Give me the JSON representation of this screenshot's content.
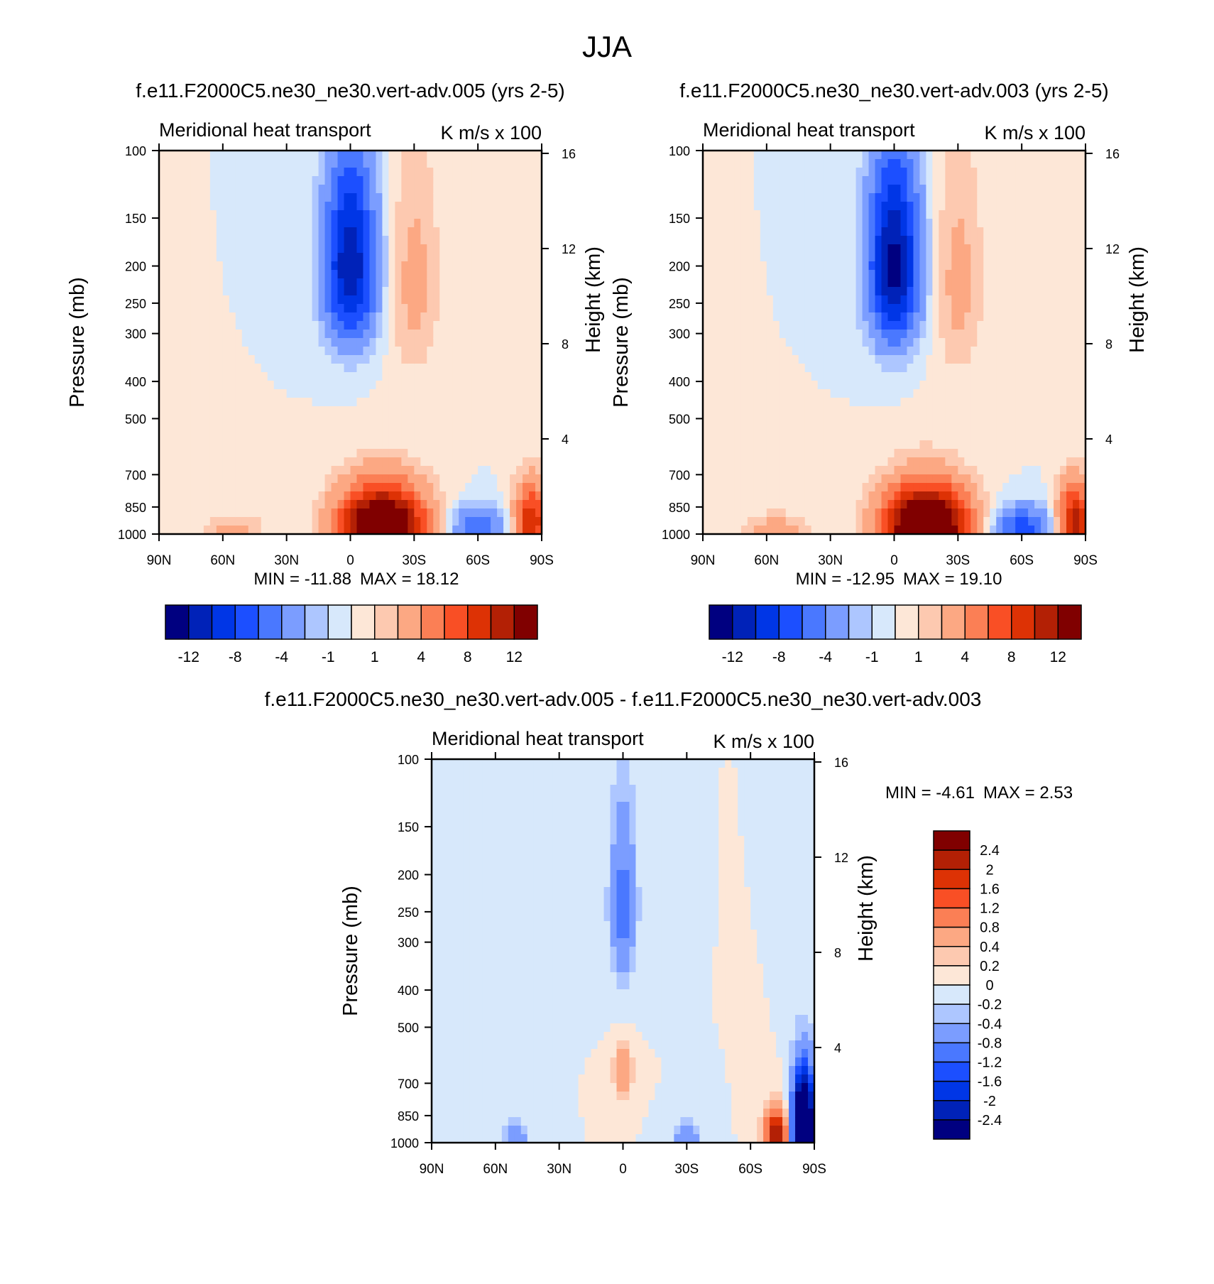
{
  "figure": {
    "title": "JJA"
  },
  "palettes": {
    "full": [
      "#000080",
      "#0022b8",
      "#0036e6",
      "#1c4fff",
      "#4a78ff",
      "#7b9dff",
      "#adc6ff",
      "#d7e8fb",
      "#fde7d7",
      "#fdc9b0",
      "#fca883",
      "#fb7f55",
      "#f94f25",
      "#dd3205",
      "#b32005",
      "#800000"
    ],
    "diff": [
      "#000080",
      "#0022b8",
      "#0036e6",
      "#1c4fff",
      "#4a78ff",
      "#7b9dff",
      "#adc6ff",
      "#d7e8fb",
      "#fde7d7",
      "#fdc9b0",
      "#fca883",
      "#fb7f55",
      "#f94f25",
      "#dd3205",
      "#b32005",
      "#800000"
    ]
  },
  "chart_data": [
    {
      "type": "heatmap",
      "title": "f.e11.F2000C5.ne30_ne30.vert-adv.005 (yrs 2-5)",
      "left_string": "Meridional heat transport",
      "right_string": "K m/s x 100",
      "ylabel": "Pressure (mb)",
      "y2label": "Height (km)",
      "x_ticks": [
        "90N",
        "60N",
        "30N",
        "0",
        "30S",
        "60S",
        "90S"
      ],
      "y_ticks": [
        "100",
        "150",
        "200",
        "250",
        "300",
        "400",
        "500",
        "700",
        "850",
        "1000"
      ],
      "y2_ticks": [
        "16",
        "12",
        "8",
        "4"
      ],
      "xlim": [
        90,
        -90
      ],
      "ylim": [
        1000,
        100
      ],
      "min_label": "MIN = -11.88",
      "max_label": "MAX =  18.12",
      "min": -11.88,
      "max": 18.12,
      "levels": [
        -14,
        -12,
        -10,
        -8,
        -6,
        -4,
        -2,
        -1,
        0,
        1,
        2,
        4,
        6,
        8,
        10,
        12,
        14
      ],
      "colorbar_labels": [
        "-12",
        "-8",
        "-4",
        "-1",
        "1",
        "4",
        "8",
        "12"
      ],
      "features": [
        {
          "lat": 0,
          "p": 200,
          "value": -11.88,
          "dlat": 12,
          "dp": 110
        },
        {
          "lat": -15,
          "p": 960,
          "value": 18.12,
          "dlat": 20,
          "dp": 220
        },
        {
          "lat": -30,
          "p": 220,
          "value": 2.5,
          "dlat": 12,
          "dp": 150
        },
        {
          "lat": -60,
          "p": 960,
          "value": -5.5,
          "dlat": 14,
          "dp": 120
        },
        {
          "lat": -85,
          "p": 930,
          "value": 10,
          "dlat": 8,
          "dp": 200
        },
        {
          "lat": 55,
          "p": 980,
          "value": 2.5,
          "dlat": 15,
          "dp": 100
        }
      ]
    },
    {
      "type": "heatmap",
      "title": "f.e11.F2000C5.ne30_ne30.vert-adv.003 (yrs 2-5)",
      "left_string": "Meridional heat transport",
      "right_string": "K m/s x 100",
      "ylabel": "Pressure (mb)",
      "y2label": "Height (km)",
      "x_ticks": [
        "90N",
        "60N",
        "30N",
        "0",
        "30S",
        "60S",
        "90S"
      ],
      "y_ticks": [
        "100",
        "150",
        "200",
        "250",
        "300",
        "400",
        "500",
        "700",
        "850",
        "1000"
      ],
      "y2_ticks": [
        "16",
        "12",
        "8",
        "4"
      ],
      "xlim": [
        90,
        -90
      ],
      "ylim": [
        1000,
        100
      ],
      "min_label": "MIN = -12.95",
      "max_label": "MAX =  19.10",
      "min": -12.95,
      "max": 19.1,
      "levels": [
        -14,
        -12,
        -10,
        -8,
        -6,
        -4,
        -2,
        -1,
        0,
        1,
        2,
        4,
        6,
        8,
        10,
        12,
        14
      ],
      "colorbar_labels": [
        "-12",
        "-8",
        "-4",
        "-1",
        "1",
        "4",
        "8",
        "12"
      ],
      "features": [
        {
          "lat": 0,
          "p": 200,
          "value": -12.95,
          "dlat": 12,
          "dp": 110
        },
        {
          "lat": -15,
          "p": 960,
          "value": 19.1,
          "dlat": 20,
          "dp": 220
        },
        {
          "lat": -30,
          "p": 220,
          "value": 2.5,
          "dlat": 12,
          "dp": 150
        },
        {
          "lat": -60,
          "p": 960,
          "value": -7,
          "dlat": 14,
          "dp": 120
        },
        {
          "lat": -85,
          "p": 930,
          "value": 11,
          "dlat": 8,
          "dp": 200
        },
        {
          "lat": 55,
          "p": 980,
          "value": 3,
          "dlat": 15,
          "dp": 100
        }
      ]
    },
    {
      "type": "heatmap",
      "title": "f.e11.F2000C5.ne30_ne30.vert-adv.005 - f.e11.F2000C5.ne30_ne30.vert-adv.003",
      "left_string": "Meridional heat transport",
      "right_string": "K m/s x 100",
      "ylabel": "Pressure (mb)",
      "y2label": "Height (km)",
      "x_ticks": [
        "90N",
        "60N",
        "30N",
        "0",
        "30S",
        "60S",
        "90S"
      ],
      "y_ticks": [
        "100",
        "150",
        "200",
        "250",
        "300",
        "400",
        "500",
        "700",
        "850",
        "1000"
      ],
      "y2_ticks": [
        "16",
        "12",
        "8",
        "4"
      ],
      "xlim": [
        90,
        -90
      ],
      "ylim": [
        1000,
        100
      ],
      "min_label": "MIN =  -4.61",
      "max_label": "MAX =   2.53",
      "min": -4.61,
      "max": 2.53,
      "levels": [
        -2.8,
        -2.4,
        -2,
        -1.6,
        -1.2,
        -0.8,
        -0.4,
        -0.2,
        0,
        0.2,
        0.4,
        0.8,
        1.2,
        1.6,
        2,
        2.4,
        2.8
      ],
      "colorbar_labels": [
        "2.4",
        "2",
        "1.6",
        "1.2",
        "0.8",
        "0.4",
        "0.2",
        "0",
        "-0.2",
        "-0.4",
        "-0.8",
        "-1.2",
        "-1.6",
        "-2",
        "-2.4"
      ],
      "features": [
        {
          "lat": -85,
          "p": 900,
          "value": -4.61,
          "dlat": 5,
          "dp": 250
        },
        {
          "lat": -72,
          "p": 950,
          "value": 2.53,
          "dlat": 5,
          "dp": 140
        },
        {
          "lat": 0,
          "p": 240,
          "value": -1.0,
          "dlat": 6,
          "dp": 120
        },
        {
          "lat": 0,
          "p": 650,
          "value": 0.9,
          "dlat": 4,
          "dp": 90
        },
        {
          "lat": -30,
          "p": 970,
          "value": -0.8,
          "dlat": 6,
          "dp": 80
        },
        {
          "lat": 50,
          "p": 960,
          "value": -0.6,
          "dlat": 6,
          "dp": 90
        }
      ]
    }
  ]
}
